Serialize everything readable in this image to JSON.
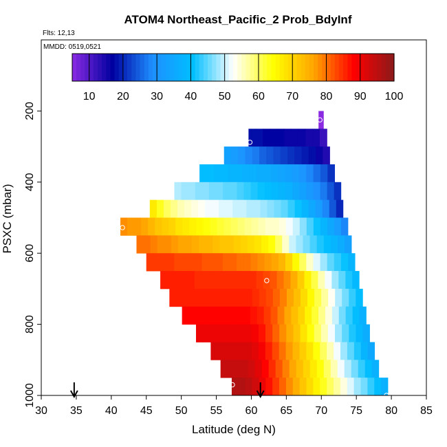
{
  "title": "ATOM4 Northeast_Pacific_2 Prob_BdyInf",
  "info": {
    "flights": "Flts: 12,13",
    "dates": "MMDD: 0519,0521"
  },
  "chart_data": {
    "type": "heatmap",
    "title": "ATOM4 Northeast_Pacific_2 Prob_BdyInf",
    "xlabel": "Latitude (deg N)",
    "ylabel": "PSXC (mbar)",
    "xlim": [
      30,
      85
    ],
    "ylim": [
      1000,
      0
    ],
    "xticks": [
      "30",
      "35",
      "40",
      "45",
      "50",
      "55",
      "60",
      "65",
      "70",
      "75",
      "80",
      "85"
    ],
    "yticks": [
      "200",
      "400",
      "600",
      "800",
      "1000"
    ],
    "xtick_values": [
      30,
      35,
      40,
      45,
      50,
      55,
      60,
      65,
      70,
      75,
      80,
      85
    ],
    "ytick_values": [
      200,
      400,
      600,
      800,
      1000
    ],
    "colorbar": {
      "range": [
        5,
        100
      ],
      "tick_labels": [
        "10",
        "20",
        "30",
        "40",
        "50",
        "60",
        "70",
        "80",
        "90",
        "100"
      ],
      "tick_values": [
        10,
        20,
        30,
        40,
        50,
        60,
        70,
        80,
        90,
        100
      ],
      "palette": [
        "#8a2be2",
        "#0000a0",
        "#1e90ff",
        "#00bfff",
        "#ffffff",
        "#ffff00",
        "#ffa500",
        "#ff0000",
        "#8b1a1a"
      ]
    },
    "rows": [
      {
        "p": 225,
        "lat_min": 69.6,
        "lat_max": 70.3,
        "values": [
          5
        ]
      },
      {
        "p": 275,
        "lat_min": 59.6,
        "lat_max": 70.8,
        "values": [
          18,
          18,
          17,
          17,
          17,
          16,
          16,
          16,
          15,
          15,
          12
        ]
      },
      {
        "p": 325,
        "lat_min": 56.1,
        "lat_max": 71.2,
        "values": [
          33,
          32,
          30,
          28,
          27,
          25,
          24,
          23,
          22,
          21,
          20,
          19,
          18,
          16,
          14
        ]
      },
      {
        "p": 375,
        "lat_min": 52.6,
        "lat_max": 71.9,
        "values": [
          40,
          40,
          39,
          39,
          38,
          38,
          37,
          37,
          36,
          36,
          35,
          34,
          33,
          32,
          30,
          28,
          26,
          24,
          21
        ]
      },
      {
        "p": 425,
        "lat_min": 49.0,
        "lat_max": 72.8,
        "values": [
          49,
          48,
          48,
          47,
          47,
          46,
          46,
          45,
          45,
          44,
          43,
          42,
          41,
          40,
          39,
          38,
          37,
          35,
          33,
          31,
          29,
          27,
          24,
          21
        ]
      },
      {
        "p": 475,
        "lat_min": 45.5,
        "lat_max": 73.1,
        "values": [
          67,
          63,
          60,
          58,
          56,
          55,
          54,
          53,
          52,
          52,
          51,
          51,
          50,
          50,
          49,
          49,
          48,
          47,
          46,
          45,
          43,
          41,
          38,
          35,
          32,
          28,
          24,
          20
        ]
      },
      {
        "p": 525,
        "lat_min": 41.3,
        "lat_max": 73.8,
        "values": [
          78,
          77,
          77,
          76,
          74,
          72,
          71,
          70,
          68,
          67,
          66,
          65,
          64,
          63,
          62,
          61,
          60,
          59,
          58,
          57,
          56,
          55,
          55,
          54,
          52,
          50,
          47,
          44,
          41,
          38,
          35,
          32,
          28
        ]
      },
      {
        "p": 575,
        "lat_min": 43.6,
        "lat_max": 74.3,
        "values": [
          80,
          80,
          79,
          78,
          78,
          77,
          76,
          76,
          75,
          74,
          74,
          73,
          72,
          72,
          71,
          70,
          69,
          68,
          66,
          64,
          60,
          55,
          50,
          48,
          46,
          44,
          42,
          40,
          38,
          36,
          33
        ]
      },
      {
        "p": 625,
        "lat_min": 45.0,
        "lat_max": 74.8,
        "values": [
          84,
          84,
          84,
          84,
          83,
          83,
          83,
          83,
          82,
          82,
          82,
          81,
          81,
          80,
          80,
          79,
          78,
          77,
          76,
          74,
          70,
          65,
          60,
          55,
          51,
          48,
          45,
          43,
          41,
          38
        ]
      },
      {
        "p": 675,
        "lat_min": 47.0,
        "lat_max": 75.4,
        "values": [
          86,
          86,
          86,
          86,
          86,
          85,
          85,
          85,
          85,
          85,
          85,
          85,
          85,
          85,
          84,
          83,
          82,
          80,
          78,
          75,
          71,
          66,
          61,
          56,
          52,
          48,
          45,
          42,
          39
        ]
      },
      {
        "p": 725,
        "lat_min": 48.3,
        "lat_max": 75.9,
        "values": [
          86,
          86,
          86,
          86,
          86,
          86,
          86,
          86,
          86,
          86,
          86,
          86,
          85,
          84,
          83,
          81,
          79,
          76,
          73,
          69,
          65,
          61,
          57,
          53,
          49,
          46,
          43,
          40
        ]
      },
      {
        "p": 775,
        "lat_min": 50.1,
        "lat_max": 76.4,
        "values": [
          88,
          88,
          88,
          88,
          88,
          88,
          88,
          88,
          88,
          88,
          87,
          86,
          84,
          82,
          79,
          76,
          73,
          70,
          66,
          62,
          58,
          54,
          50,
          46,
          43,
          40,
          37
        ]
      },
      {
        "p": 825,
        "lat_min": 52.1,
        "lat_max": 76.9,
        "values": [
          90,
          90,
          90,
          90,
          90,
          90,
          90,
          90,
          89,
          87,
          84,
          81,
          78,
          75,
          72,
          68,
          64,
          60,
          56,
          52,
          48,
          45,
          42,
          39,
          36
        ]
      },
      {
        "p": 875,
        "lat_min": 54.2,
        "lat_max": 77.6,
        "values": [
          92,
          92,
          92,
          92,
          92,
          92,
          91,
          89,
          86,
          83,
          80,
          77,
          74,
          71,
          68,
          64,
          60,
          56,
          52,
          48,
          45,
          42,
          38,
          35
        ]
      },
      {
        "p": 925,
        "lat_min": 55.6,
        "lat_max": 78.2,
        "values": [
          94,
          94,
          94,
          94,
          93,
          91,
          88,
          85,
          82,
          79,
          76,
          73,
          70,
          67,
          64,
          60,
          56,
          52,
          49,
          46,
          43,
          40,
          37
        ]
      },
      {
        "p": 975,
        "lat_min": 57.2,
        "lat_max": 79.5,
        "values": [
          96,
          96,
          95,
          93,
          90,
          87,
          84,
          81,
          78,
          75,
          72,
          69,
          66,
          63,
          60,
          57,
          54,
          51,
          48,
          46,
          43,
          40,
          37
        ]
      }
    ],
    "circles": [
      {
        "lat": 69.8,
        "p": 225
      },
      {
        "lat": 59.8,
        "p": 288
      },
      {
        "lat": 41.6,
        "p": 528
      },
      {
        "lat": 62.2,
        "p": 677
      },
      {
        "lat": 57.3,
        "p": 970
      },
      {
        "lat": 79.3,
        "p": 1000
      }
    ],
    "arrows": [
      {
        "lat": 34.7
      },
      {
        "lat": 61.3
      }
    ]
  }
}
